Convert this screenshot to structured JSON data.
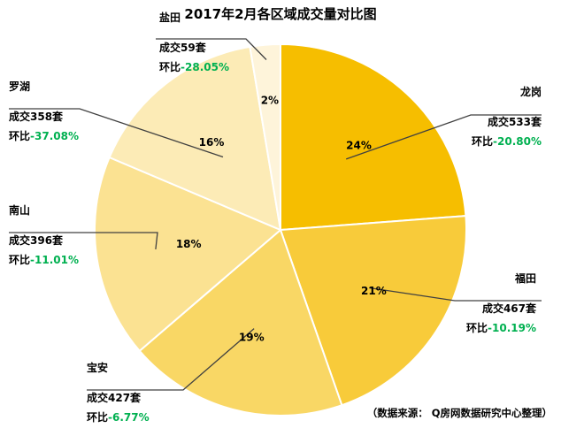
{
  "chart_data": {
    "type": "pie",
    "title": "2017年2月各区域成交量对比图",
    "source": "（数据来源： Q房网数据研究中心整理）",
    "slices": [
      {
        "district": "龙岗",
        "deals": 533,
        "percent_label": "24%",
        "deals_prefix": "成交",
        "deals_suffix": "套",
        "mom_prefix": "环比",
        "mom_value": "-20.80%",
        "color": "#F6BE00"
      },
      {
        "district": "福田",
        "deals": 467,
        "percent_label": "21%",
        "deals_prefix": "成交",
        "deals_suffix": "套",
        "mom_prefix": "环比",
        "mom_value": "-10.19%",
        "color": "#F8CB3A"
      },
      {
        "district": "宝安",
        "deals": 427,
        "percent_label": "19%",
        "deals_prefix": "成交",
        "deals_suffix": "套",
        "mom_prefix": "环比",
        "mom_value": "-6.77%",
        "color": "#F9D765"
      },
      {
        "district": "南山",
        "deals": 396,
        "percent_label": "18%",
        "deals_prefix": "成交",
        "deals_suffix": "套",
        "mom_prefix": "环比",
        "mom_value": "-11.01%",
        "color": "#FBE292"
      },
      {
        "district": "罗湖",
        "deals": 358,
        "percent_label": "16%",
        "deals_prefix": "成交",
        "deals_suffix": "套",
        "mom_prefix": "环比",
        "mom_value": "-37.08%",
        "color": "#FCEBB6"
      },
      {
        "district": "盐田",
        "deals": 59,
        "percent_label": "2%",
        "deals_prefix": "成交",
        "deals_suffix": "套",
        "mom_prefix": "环比",
        "mom_value": "-28.05%",
        "color": "#FEF4DA"
      }
    ],
    "colors": {
      "mom_value": "#00B050",
      "text": "#000000",
      "leader_line": "#404040"
    }
  }
}
